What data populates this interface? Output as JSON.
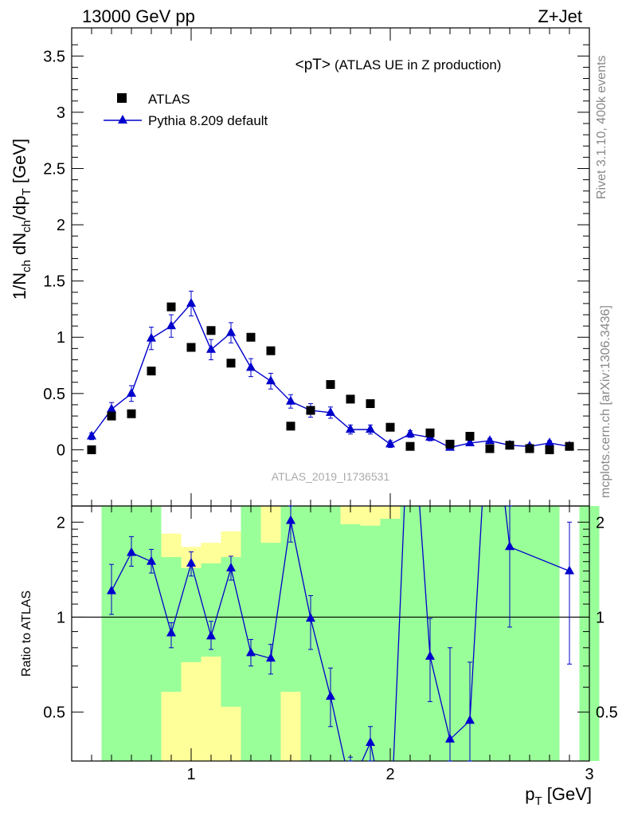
{
  "header": {
    "left": "13000 GeV pp",
    "right": "Z+Jet"
  },
  "side_labels": {
    "rivet": "Rivet 3.1.10,  400k events",
    "mcplots": "mcplots.cern.ch [arXiv:1306.3436]"
  },
  "colors": {
    "data": "#000000",
    "mc": "#0000cc",
    "band_inner": "#99ff99",
    "band_outer": "#ffff99"
  },
  "chart_data": [
    {
      "type": "scatter",
      "title": "<pT>",
      "subtitle": "(ATLAS UE in Z production)",
      "ylabel_main": "1/N",
      "ylabel_sub1": "ch",
      "ylabel_mid": " dN",
      "ylabel_sub2": "ch",
      "ylabel_mid2": "/dp",
      "ylabel_sub3": "T",
      "ylabel_unit": " [GeV]",
      "watermark": "ATLAS_2019_I1736531",
      "xlim": [
        0.4,
        3.0
      ],
      "ylim": [
        -0.5,
        3.75
      ],
      "yticks": [
        0,
        0.5,
        1,
        1.5,
        2,
        2.5,
        3,
        3.5
      ],
      "ytick_labels": [
        "0",
        "0.5",
        "1",
        "1.5",
        "2",
        "2.5",
        "3",
        "3.5"
      ],
      "legend": {
        "placement": "top-left",
        "entries": [
          "ATLAS",
          "Pythia 8.209 default"
        ]
      },
      "series": [
        {
          "name": "ATLAS",
          "marker": "square",
          "x": [
            0.5,
            0.6,
            0.7,
            0.8,
            0.9,
            1.0,
            1.1,
            1.2,
            1.3,
            1.4,
            1.5,
            1.6,
            1.7,
            1.8,
            1.9,
            2.0,
            2.1,
            2.2,
            2.3,
            2.4,
            2.5,
            2.6,
            2.7,
            2.8,
            2.9
          ],
          "y": [
            0.0,
            0.3,
            0.32,
            0.7,
            1.27,
            0.91,
            1.06,
            0.77,
            1.0,
            0.88,
            0.21,
            0.35,
            0.58,
            0.45,
            0.41,
            0.2,
            0.03,
            0.15,
            0.05,
            0.12,
            0.01,
            0.04,
            0.01,
            0.0,
            0.03
          ]
        },
        {
          "name": "Pythia 8.209 default",
          "marker": "triangle",
          "x": [
            0.5,
            0.6,
            0.7,
            0.8,
            0.9,
            1.0,
            1.1,
            1.2,
            1.3,
            1.4,
            1.5,
            1.6,
            1.7,
            1.8,
            1.9,
            2.0,
            2.1,
            2.2,
            2.3,
            2.4,
            2.5,
            2.6,
            2.7,
            2.8,
            2.9
          ],
          "y": [
            0.12,
            0.36,
            0.5,
            0.99,
            1.1,
            1.3,
            0.89,
            1.04,
            0.73,
            0.61,
            0.43,
            0.35,
            0.33,
            0.18,
            0.18,
            0.05,
            0.14,
            0.11,
            0.02,
            0.06,
            0.08,
            0.04,
            0.03,
            0.06,
            0.03
          ],
          "err": [
            0.03,
            0.06,
            0.07,
            0.1,
            0.1,
            0.11,
            0.09,
            0.09,
            0.08,
            0.07,
            0.06,
            0.06,
            0.05,
            0.04,
            0.04,
            0.03,
            0.03,
            0.03,
            0.02,
            0.02,
            0.02,
            0.02,
            0.02,
            0.02,
            0.02
          ]
        }
      ]
    },
    {
      "type": "scatter",
      "ylabel": "Ratio to ATLAS",
      "xlabel_main": "p",
      "xlabel_sub": "T",
      "xlabel_unit": " [GeV]",
      "xlim": [
        0.4,
        3.0
      ],
      "ylim": [
        0.35,
        2.25
      ],
      "xticks": [
        1,
        2,
        3
      ],
      "xtick_labels": [
        "1",
        "2",
        "3"
      ],
      "yticks": [
        0.5,
        1,
        2
      ],
      "ytick_labels": [
        "0.5",
        "1",
        "2"
      ],
      "reference_line": 1,
      "bands": {
        "edges": [
          0.55,
          0.65,
          0.75,
          0.85,
          0.95,
          1.05,
          1.15,
          1.25,
          1.35,
          1.45,
          1.55,
          1.65,
          1.75,
          1.85,
          1.95,
          2.05,
          2.15,
          2.25,
          2.35,
          2.45,
          2.55,
          2.65,
          2.75,
          2.85,
          2.95
        ],
        "inner": [
          [
            0.35,
            2.25
          ],
          [
            0.35,
            2.25
          ],
          [
            0.35,
            2.25
          ],
          [
            0.58,
            1.55
          ],
          [
            0.72,
            1.43
          ],
          [
            0.75,
            1.48
          ],
          [
            0.52,
            1.55
          ],
          [
            0.35,
            2.25
          ],
          [
            0.35,
            1.72
          ],
          [
            0.58,
            2.25
          ],
          [
            0.35,
            2.25
          ],
          [
            0.35,
            2.25
          ],
          [
            0.35,
            1.97
          ],
          [
            0.35,
            1.95
          ],
          [
            0.35,
            2.05
          ],
          [
            0.35,
            2.25
          ],
          [
            0.35,
            2.25
          ],
          [
            0.35,
            2.25
          ],
          [
            0.35,
            2.25
          ],
          [
            0.35,
            2.25
          ],
          [
            0.35,
            2.25
          ],
          [
            0.35,
            2.25
          ],
          [
            0.35,
            2.25
          ],
          null,
          [
            0.35,
            2.25
          ]
        ],
        "outer": [
          [
            0.35,
            2.25
          ],
          [
            0.35,
            2.25
          ],
          [
            0.35,
            2.25
          ],
          [
            0.35,
            1.84
          ],
          [
            0.35,
            1.67
          ],
          [
            0.35,
            1.72
          ],
          [
            0.35,
            1.87
          ],
          [
            0.35,
            2.25
          ],
          [
            0.35,
            2.25
          ],
          [
            0.35,
            2.25
          ],
          [
            0.35,
            2.25
          ],
          [
            0.35,
            2.25
          ],
          [
            0.35,
            2.25
          ],
          [
            0.35,
            2.25
          ],
          [
            0.35,
            2.25
          ],
          [
            0.35,
            2.25
          ],
          [
            0.35,
            2.25
          ],
          [
            0.35,
            2.25
          ],
          [
            0.35,
            2.25
          ],
          [
            0.35,
            2.25
          ],
          [
            0.35,
            2.25
          ],
          [
            0.35,
            2.25
          ],
          [
            0.35,
            2.25
          ],
          null,
          [
            0.35,
            2.25
          ]
        ],
        "outer_top": [
          2.25,
          2.02,
          2.25,
          1.84,
          1.67,
          1.72,
          1.87,
          2.25,
          2.25,
          2.02,
          2.25,
          2.25,
          2.25,
          2.25,
          2.25,
          2.25,
          2.25,
          2.25,
          2.25,
          2.25,
          2.25,
          2.25,
          2.25,
          null,
          2.25
        ]
      },
      "series": [
        {
          "name": "Pythia 8.209 default",
          "marker": "triangle",
          "x": [
            0.6,
            0.7,
            0.8,
            0.9,
            1.0,
            1.1,
            1.2,
            1.3,
            1.4,
            1.5,
            1.6,
            1.7,
            1.8,
            1.9,
            2.2,
            2.3,
            2.4,
            2.6,
            2.9
          ],
          "y": [
            1.21,
            1.6,
            1.5,
            0.89,
            1.48,
            0.87,
            1.43,
            0.77,
            0.74,
            2.02,
            0.99,
            0.56,
            0.29,
            0.4,
            0.75,
            0.41,
            0.47,
            1.67,
            1.4
          ],
          "err_lo": [
            0.19,
            0.15,
            0.12,
            0.09,
            0.13,
            0.08,
            0.12,
            0.07,
            0.08,
            0.29,
            0.2,
            0.11,
            0.08,
            0.06,
            0.21,
            0.11,
            0.18,
            0.74,
            0.69
          ],
          "err_hi": [
            0.26,
            0.2,
            0.14,
            0.07,
            0.13,
            0.1,
            0.13,
            0.08,
            0.08,
            0.25,
            0.18,
            0.13,
            0.07,
            0.05,
            0.24,
            0.39,
            0.25,
            0.8,
            0.6
          ]
        }
      ],
      "off_scale": {
        "x": [
          2.0,
          2.1,
          2.5
        ],
        "note": ""
      }
    }
  ]
}
